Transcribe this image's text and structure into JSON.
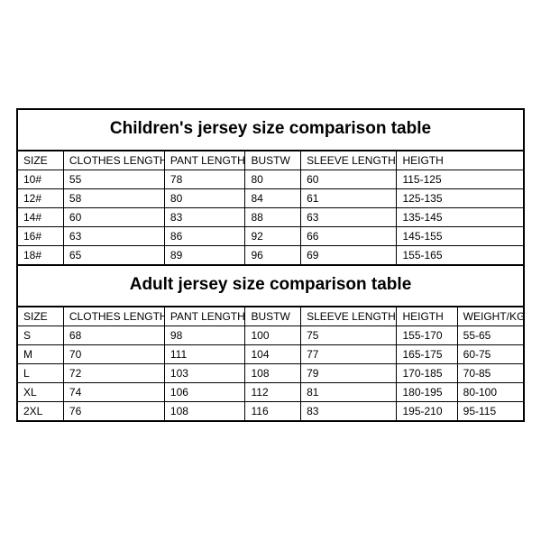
{
  "background_color": "#ffffff",
  "border_color": "#000000",
  "text_color": "#000000",
  "title_fontsize": 19,
  "cell_fontsize": 12,
  "children_table": {
    "title": "Children's jersey size comparison table",
    "columns": [
      "SIZE",
      "CLOTHES LENGTH",
      "PANT LENGTH",
      "BUSTW",
      "SLEEVE LENGTH",
      "HEIGTH"
    ],
    "rows": [
      [
        "10#",
        "55",
        "78",
        "80",
        "60",
        "115-125"
      ],
      [
        "12#",
        "58",
        "80",
        "84",
        "61",
        "125-135"
      ],
      [
        "14#",
        "60",
        "83",
        "88",
        "63",
        "135-145"
      ],
      [
        "16#",
        "63",
        "86",
        "92",
        "66",
        "145-155"
      ],
      [
        "18#",
        "65",
        "89",
        "96",
        "69",
        "155-165"
      ]
    ]
  },
  "adult_table": {
    "title": "Adult jersey size comparison table",
    "columns": [
      "SIZE",
      "CLOTHES LENGTH",
      "PANT LENGTH",
      "BUSTW",
      "SLEEVE LENGTH",
      "HEIGTH",
      "WEIGHT/KG"
    ],
    "rows": [
      [
        "S",
        "68",
        "98",
        "100",
        "75",
        "155-170",
        "55-65"
      ],
      [
        "M",
        "70",
        "111",
        "104",
        "77",
        "165-175",
        "60-75"
      ],
      [
        "L",
        "72",
        "103",
        "108",
        "79",
        "170-185",
        "70-85"
      ],
      [
        "XL",
        "74",
        "106",
        "112",
        "81",
        "180-195",
        "80-100"
      ],
      [
        "2XL",
        "76",
        "108",
        "116",
        "83",
        "195-210",
        "95-115"
      ]
    ]
  }
}
